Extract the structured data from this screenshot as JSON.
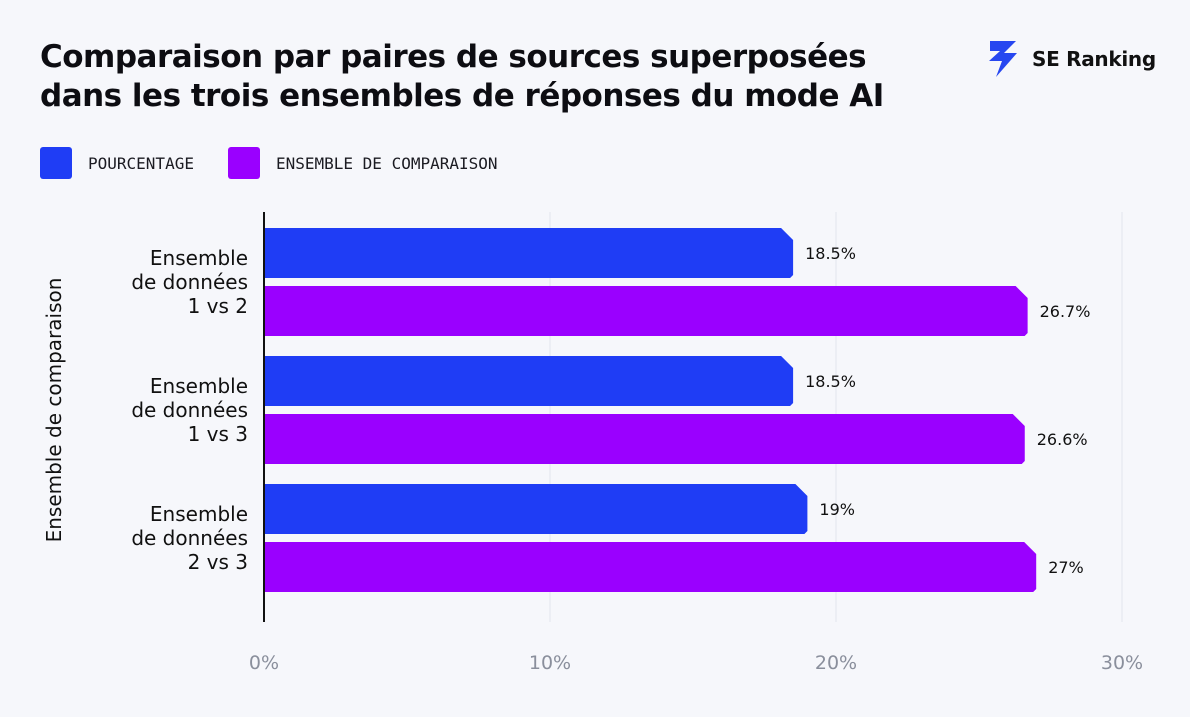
{
  "title_lines": [
    "Comparaison par paires de sources superposées",
    "dans les trois ensembles de réponses du mode AI"
  ],
  "brand": {
    "name": "SE Ranking",
    "icon": "se-ranking-logo-icon"
  },
  "colors": {
    "blue": "#1f3df5",
    "purple": "#9a00ff"
  },
  "legend": [
    {
      "label": "POURCENTAGE",
      "color": "#1f3df5"
    },
    {
      "label": "ENSEMBLE DE COMPARAISON",
      "color": "#9a00ff"
    }
  ],
  "chart_data": {
    "type": "bar",
    "orientation": "horizontal",
    "ylabel": "Ensemble de comparaison",
    "xlabel": "",
    "categories": [
      "Ensemble\nde données\n1 vs 2",
      "Ensemble\nde données\n1 vs 3",
      "Ensemble\nde données\n2 vs 3"
    ],
    "series": [
      {
        "name": "POURCENTAGE",
        "color": "#1f3df5",
        "values": [
          18.5,
          18.5,
          19
        ],
        "labels": [
          "18.5%",
          "18.5%",
          "19%"
        ]
      },
      {
        "name": "ENSEMBLE DE COMPARAISON",
        "color": "#9a00ff",
        "values": [
          26.7,
          26.6,
          27
        ],
        "labels": [
          "26.7%",
          "26.6%",
          "27%"
        ]
      }
    ],
    "xlim": [
      0,
      30
    ],
    "xticks": [
      0,
      10,
      20,
      30
    ],
    "xtick_labels": [
      "0%",
      "10%",
      "20%",
      "30%"
    ],
    "grid": true,
    "legend_position": "top-left"
  }
}
